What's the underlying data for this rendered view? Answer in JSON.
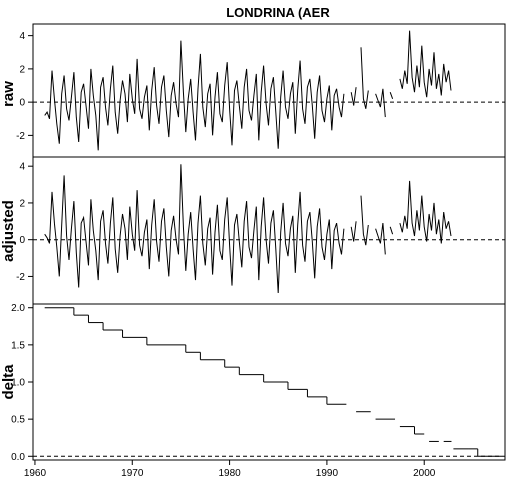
{
  "chart_data": {
    "type": "line",
    "title": "LONDRINA (AER",
    "xlim": [
      1959.8,
      2008.3
    ],
    "x_ticks": [
      1960,
      1970,
      1980,
      1990,
      2000
    ],
    "x_tick_labels": [
      "1960",
      "1970",
      "1980",
      "1990",
      "2000"
    ],
    "colors": {
      "line": "#000000",
      "frame": "#000000",
      "background": "#ffffff"
    },
    "panels": [
      {
        "id": "raw",
        "ylabel": "raw",
        "ylim": [
          -3.3,
          4.7
        ],
        "y_ticks": [
          -2,
          0,
          2,
          4
        ],
        "y_tick_labels": [
          "-2",
          "0",
          "2",
          "4"
        ],
        "reference_line": 0,
        "series": {
          "start": 1961.0,
          "step": 0.25,
          "values": [
            -0.8,
            -0.6,
            -1.0,
            1.9,
            0.2,
            -1.3,
            -2.5,
            0.5,
            1.6,
            -0.4,
            -1.1,
            0.3,
            1.8,
            -0.9,
            -2.4,
            0.6,
            1.1,
            -0.2,
            -1.6,
            2.0,
            0.4,
            -0.8,
            -2.9,
            0.9,
            1.5,
            -0.3,
            -1.4,
            0.8,
            2.2,
            -0.6,
            -1.9,
            0.1,
            1.3,
            0.5,
            -1.2,
            1.7,
            0.2,
            -0.7,
            2.6,
            -0.4,
            -1.0,
            0.3,
            1.0,
            -1.7,
            0.7,
            2.1,
            -0.2,
            -1.3,
            0.9,
            1.6,
            -0.5,
            -2.1,
            0.4,
            1.2,
            -0.1,
            -0.9,
            3.7,
            0.6,
            -1.8,
            0.2,
            1.4,
            -0.6,
            -2.3,
            0.8,
            2.9,
            -0.3,
            -1.5,
            0.5,
            1.1,
            -2.0,
            0.3,
            1.8,
            -0.7,
            -1.2,
            1.0,
            2.4,
            -0.4,
            -2.6,
            0.7,
            1.3,
            -0.2,
            -1.6,
            0.9,
            2.0,
            -0.5,
            -1.1,
            0.4,
            1.7,
            -2.3,
            0.6,
            2.2,
            -0.1,
            -1.4,
            0.8,
            1.5,
            -0.6,
            -2.8,
            0.3,
            1.9,
            -0.3,
            -1.0,
            0.5,
            1.2,
            -1.9,
            0.7,
            2.5,
            -0.4,
            -1.3,
            0.9,
            1.4,
            -0.2,
            -2.2,
            0.6,
            1.6,
            -0.5,
            -1.2,
            0.2,
            1.0,
            -1.7,
            0.4,
            0.8,
            -0.3,
            -0.9,
            0.5,
            null,
            null,
            0.6,
            -0.2,
            0.9,
            null,
            3.3,
            0.2,
            -0.4,
            0.7,
            null,
            null,
            0.5,
            0.1,
            -0.3,
            0.8,
            -0.9,
            null,
            0.6,
            0.2,
            null,
            null,
            1.4,
            0.8,
            1.9,
            1.1,
            4.3,
            1.5,
            0.6,
            2.2,
            0.9,
            3.4,
            1.2,
            0.3,
            2.0,
            1.0,
            3.0,
            0.8,
            1.7,
            0.4,
            2.3,
            1.2,
            1.9,
            0.7
          ]
        }
      },
      {
        "id": "adjusted",
        "ylabel": "adjusted",
        "ylim": [
          -3.5,
          4.5
        ],
        "y_ticks": [
          -2,
          0,
          2,
          4
        ],
        "y_tick_labels": [
          "-2",
          "0",
          "2",
          "4"
        ],
        "reference_line": 0,
        "series": {
          "start": 1961.0,
          "step": 0.25,
          "values": [
            0.3,
            0.1,
            -0.2,
            2.6,
            0.9,
            -0.4,
            -2.0,
            0.8,
            3.5,
            0.2,
            -1.1,
            0.6,
            2.1,
            -0.7,
            -2.6,
            0.9,
            1.2,
            -0.1,
            -1.4,
            2.2,
            0.5,
            -0.6,
            -2.2,
            1.0,
            1.6,
            -0.2,
            -1.3,
            0.9,
            2.3,
            -0.5,
            -1.8,
            0.2,
            1.4,
            0.6,
            -1.1,
            1.8,
            0.3,
            -0.6,
            2.7,
            -0.3,
            -0.9,
            0.4,
            1.1,
            -1.6,
            0.8,
            2.2,
            -0.1,
            -1.2,
            1.0,
            1.7,
            -0.4,
            -2.0,
            0.5,
            1.3,
            0.0,
            -0.8,
            4.1,
            0.7,
            -1.7,
            0.3,
            1.5,
            -0.5,
            -2.2,
            0.9,
            2.4,
            -0.2,
            -1.4,
            0.6,
            1.2,
            -1.9,
            0.4,
            1.9,
            -0.6,
            -1.1,
            1.1,
            2.3,
            -0.3,
            -2.5,
            0.8,
            1.4,
            -0.1,
            -1.5,
            1.0,
            2.1,
            -0.4,
            -1.0,
            0.5,
            1.8,
            -2.2,
            0.7,
            2.3,
            0.0,
            -1.3,
            0.9,
            1.6,
            -0.5,
            -2.9,
            0.4,
            2.0,
            -0.2,
            -0.9,
            0.6,
            1.3,
            -1.8,
            0.8,
            2.6,
            -0.3,
            -1.2,
            1.0,
            1.5,
            -0.1,
            -2.1,
            0.7,
            1.7,
            -0.4,
            -1.1,
            0.3,
            1.1,
            -1.6,
            0.5,
            0.9,
            -0.2,
            -0.8,
            0.6,
            null,
            null,
            0.7,
            -0.1,
            1.0,
            null,
            2.4,
            0.3,
            -0.3,
            0.8,
            null,
            null,
            0.6,
            0.2,
            -0.2,
            0.9,
            -0.8,
            null,
            0.7,
            0.3,
            null,
            null,
            0.9,
            0.4,
            1.3,
            0.6,
            3.2,
            0.9,
            0.2,
            1.6,
            0.5,
            2.4,
            0.7,
            -0.1,
            1.4,
            0.5,
            2.0,
            0.3,
            1.1,
            -0.2,
            1.5,
            0.6,
            1.0,
            0.2
          ]
        }
      },
      {
        "id": "delta",
        "ylabel": "delta",
        "ylim": [
          -0.05,
          2.05
        ],
        "y_ticks": [
          0.0,
          0.5,
          1.0,
          1.5,
          2.0
        ],
        "y_tick_labels": [
          "0.0",
          "0.5",
          "1.0",
          "1.5",
          "2.0"
        ],
        "reference_line": 0,
        "steps": [
          [
            1961.0,
            1964.0,
            2.0
          ],
          [
            1964.0,
            1965.5,
            1.9
          ],
          [
            1965.5,
            1967.0,
            1.8
          ],
          [
            1967.0,
            1969.0,
            1.7
          ],
          [
            1969.0,
            1971.5,
            1.6
          ],
          [
            1971.5,
            1975.5,
            1.5
          ],
          [
            1975.5,
            1977.0,
            1.4
          ],
          [
            1977.0,
            1979.5,
            1.3
          ],
          [
            1979.5,
            1981.0,
            1.2
          ],
          [
            1981.0,
            1983.5,
            1.1
          ],
          [
            1983.5,
            1986.0,
            1.0
          ],
          [
            1986.0,
            1988.0,
            0.9
          ],
          [
            1988.0,
            1990.0,
            0.8
          ],
          [
            1990.0,
            1992.0,
            0.7
          ],
          [
            1993.0,
            1994.5,
            0.6
          ],
          [
            1995.0,
            1997.0,
            0.5
          ],
          [
            1997.5,
            1999.0,
            0.4
          ],
          [
            1999.0,
            2000.0,
            0.3
          ],
          [
            2000.5,
            2001.5,
            0.2
          ],
          [
            2002.0,
            2002.8,
            0.2
          ],
          [
            2003.0,
            2004.5,
            0.1
          ],
          [
            2004.5,
            2005.5,
            0.1
          ],
          [
            2005.5,
            2008.0,
            0.0
          ]
        ]
      }
    ]
  }
}
